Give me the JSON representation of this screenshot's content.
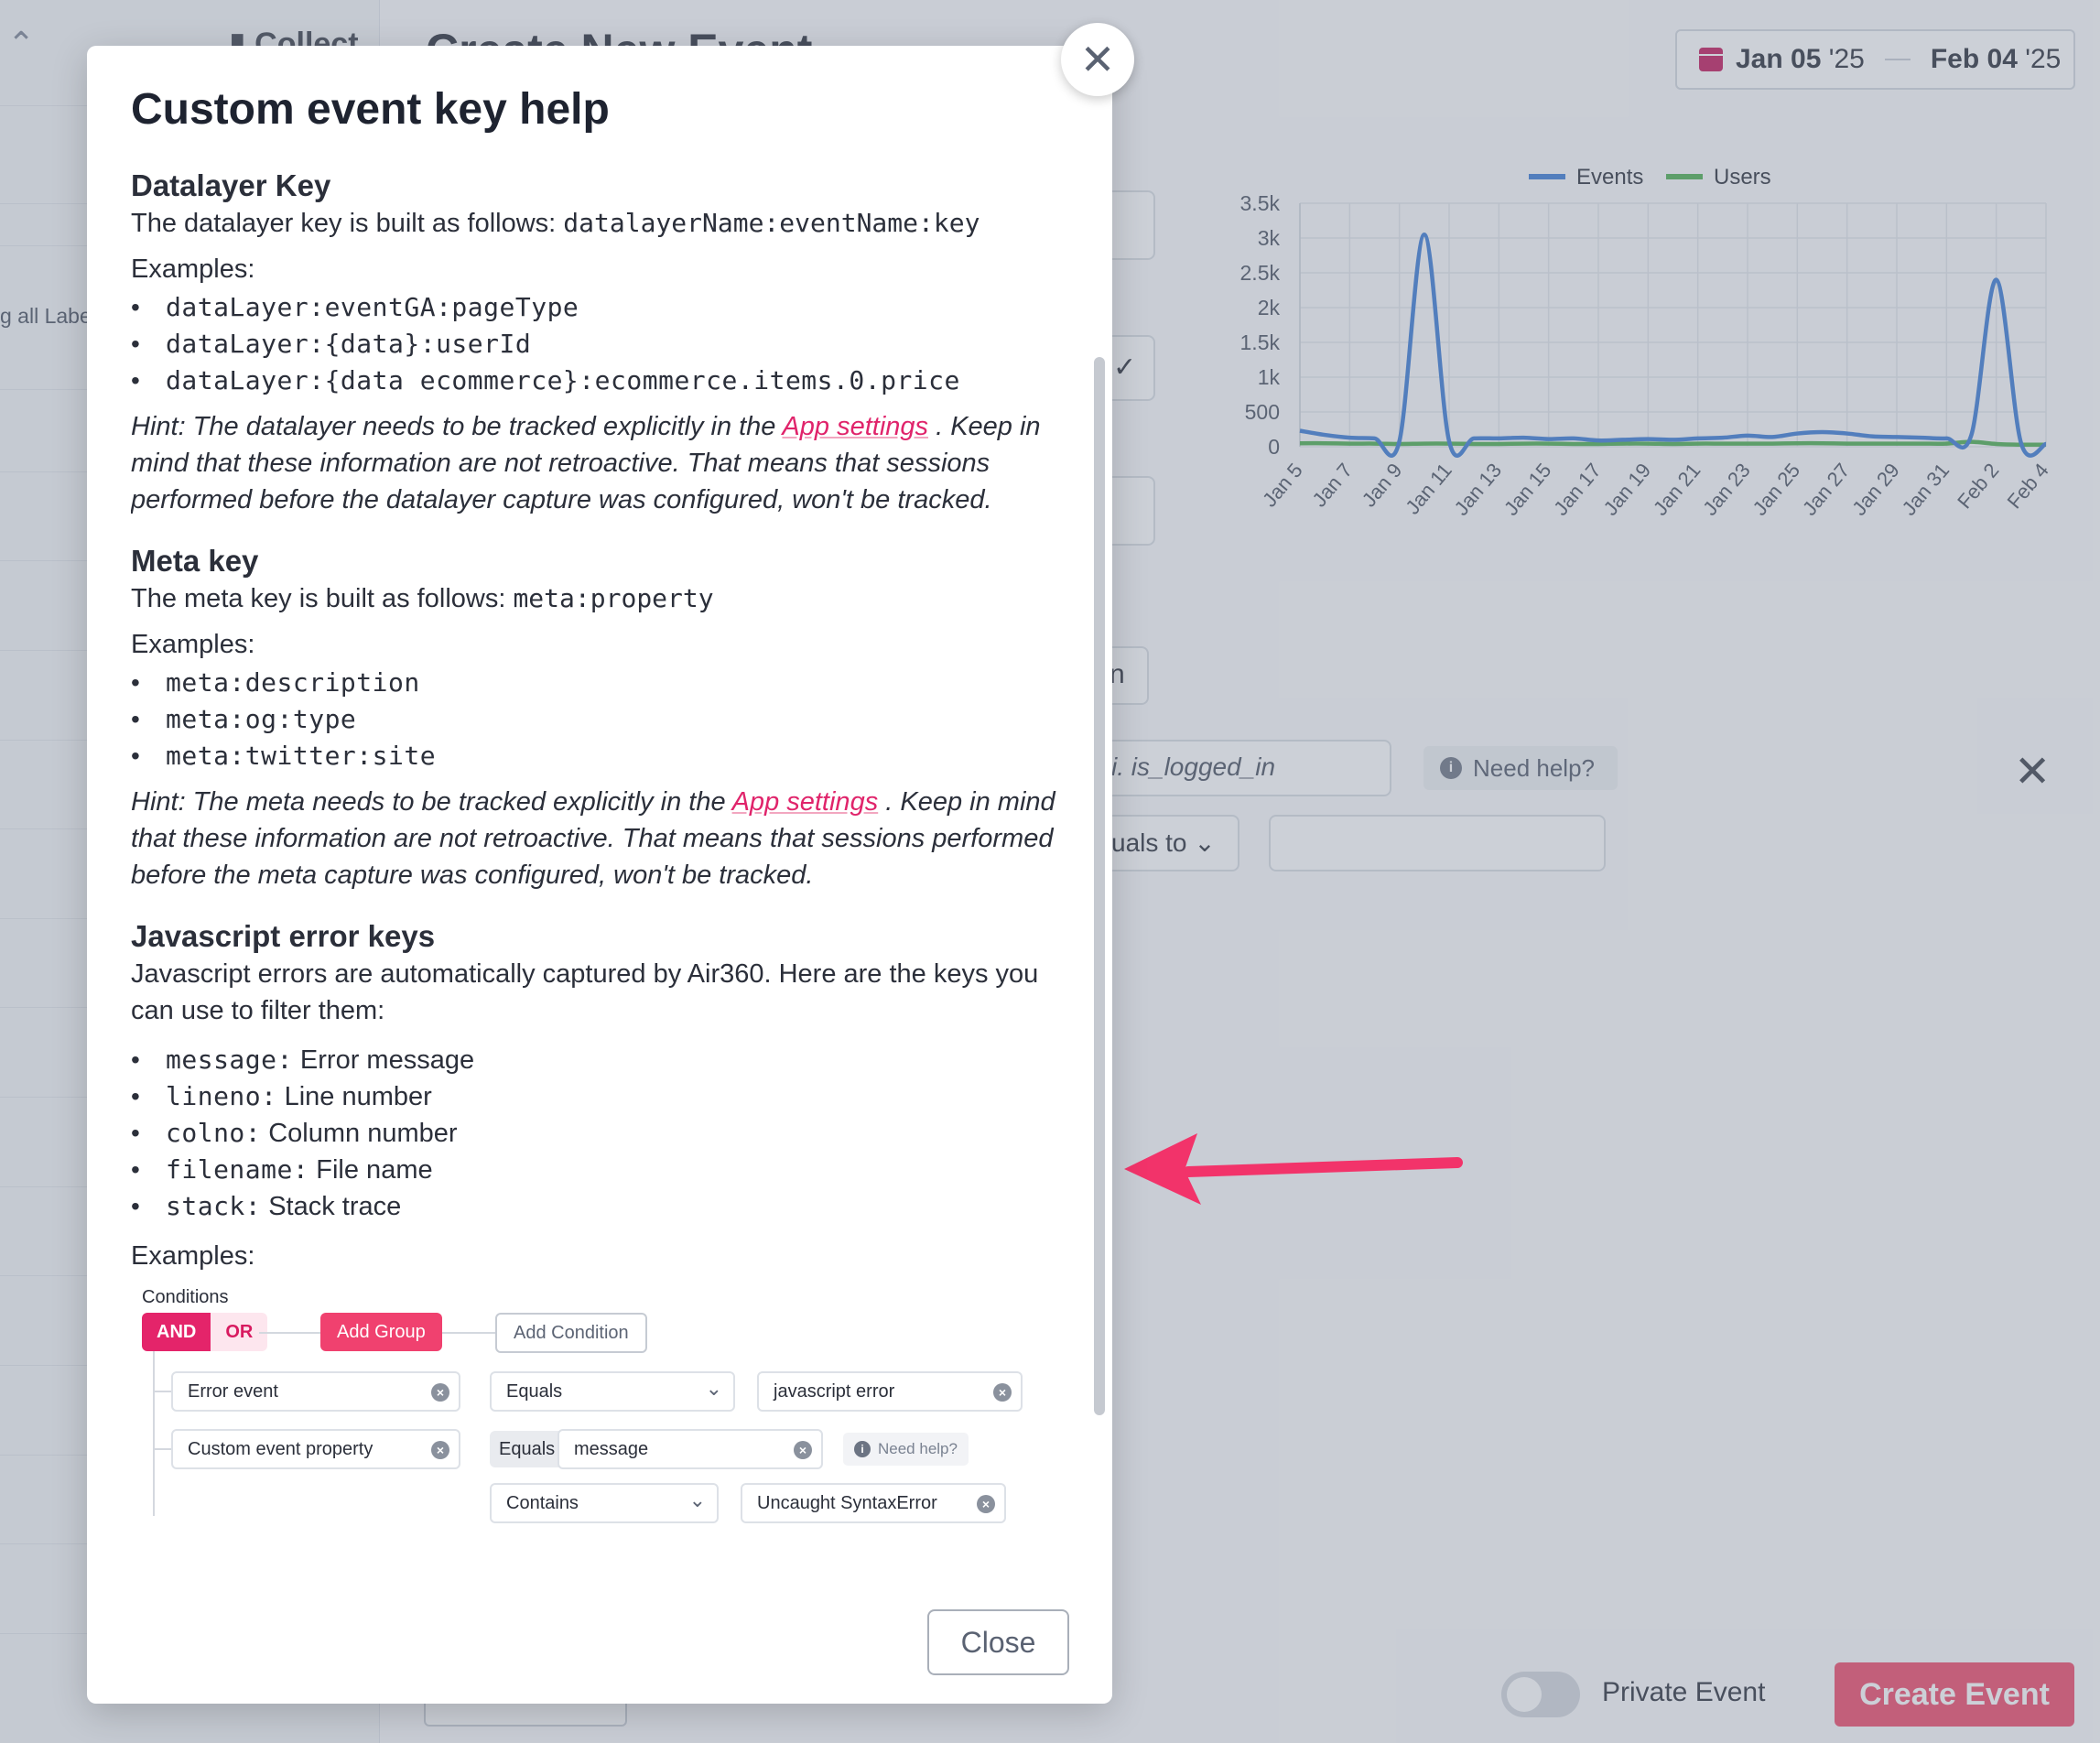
{
  "background": {
    "sidebar_label": "g all Labe",
    "collect_label": "Collect",
    "page_title": "Create New Event",
    "date_range": {
      "start": "Jan 05",
      "start_year": " '25",
      "end": "Feb 04",
      "end_year": " '25"
    },
    "key_input_placeholder": "i. is_logged_in",
    "need_help": "Need help?",
    "equals_label": "uals to",
    "button_partial": "n",
    "private_event_label": "Private Event",
    "create_event_label": "Create Event"
  },
  "chart_data": {
    "type": "line",
    "title": "",
    "xlabel": "",
    "ylabel": "",
    "legend_position": "top",
    "grid": true,
    "ylim": [
      0,
      3500
    ],
    "yticks": [
      "0",
      "500",
      "1k",
      "1.5k",
      "2k",
      "2.5k",
      "3k",
      "3.5k"
    ],
    "x": [
      "Jan 5",
      "Jan 6",
      "Jan 7",
      "Jan 8",
      "Jan 9",
      "Jan 10",
      "Jan 11",
      "Jan 12",
      "Jan 13",
      "Jan 14",
      "Jan 15",
      "Jan 16",
      "Jan 17",
      "Jan 18",
      "Jan 19",
      "Jan 20",
      "Jan 21",
      "Jan 22",
      "Jan 23",
      "Jan 24",
      "Jan 25",
      "Jan 26",
      "Jan 27",
      "Jan 28",
      "Jan 29",
      "Jan 30",
      "Jan 31",
      "Feb 1",
      "Feb 2",
      "Feb 3",
      "Feb 4"
    ],
    "xtick_labels": [
      "Jan 5",
      "Jan 7",
      "Jan 9",
      "Jan 11",
      "Jan 13",
      "Jan 15",
      "Jan 17",
      "Jan 19",
      "Jan 21",
      "Jan 23",
      "Jan 25",
      "Jan 27",
      "Jan 29",
      "Jan 31",
      "Feb 2",
      "Feb 4"
    ],
    "series": [
      {
        "name": "Events",
        "color": "#3a7bd5",
        "values": [
          230,
          170,
          130,
          120,
          80,
          3050,
          80,
          120,
          120,
          130,
          110,
          120,
          90,
          100,
          110,
          100,
          120,
          130,
          160,
          140,
          190,
          210,
          190,
          150,
          140,
          130,
          120,
          170,
          2400,
          50,
          40
        ]
      },
      {
        "name": "Users",
        "color": "#4caf50",
        "values": [
          50,
          50,
          45,
          45,
          40,
          45,
          45,
          40,
          40,
          45,
          45,
          40,
          40,
          45,
          45,
          40,
          45,
          45,
          45,
          45,
          50,
          50,
          45,
          45,
          45,
          45,
          45,
          70,
          40,
          30,
          30
        ]
      }
    ]
  },
  "modal": {
    "title": "Custom event key help",
    "close_label": "Close",
    "datalayer": {
      "heading": "Datalayer Key",
      "intro": "The datalayer key is built as follows: ",
      "format": "datalayerName:eventName:key",
      "examples_label": "Examples:",
      "examples": [
        "dataLayer:eventGA:pageType",
        "dataLayer:{data}:userId",
        "dataLayer:{data ecommerce}:ecommerce.items.0.price"
      ],
      "hint_before": "Hint: The datalayer needs to be tracked explicitly in the ",
      "hint_link": "App settings",
      "hint_after": " . Keep in mind that these information are not retroactive. That means that sessions performed before the datalayer capture was configured, won't be tracked."
    },
    "meta": {
      "heading": "Meta key",
      "intro": "The meta key is built as follows: ",
      "format": "meta:property",
      "examples_label": "Examples:",
      "examples": [
        "meta:description",
        "meta:og:type",
        "meta:twitter:site"
      ],
      "hint_before": "Hint: The meta needs to be tracked explicitly in the ",
      "hint_link": "App settings",
      "hint_after": " . Keep in mind that these information are not retroactive. That means that sessions performed before the meta capture was configured, won't be tracked."
    },
    "jserror": {
      "heading": "Javascript error keys",
      "intro": "Javascript errors are automatically captured by Air360. Here are the keys you can use to filter them:",
      "keys": [
        {
          "key": "message:",
          "desc": " Error message"
        },
        {
          "key": "lineno:",
          "desc": " Line number"
        },
        {
          "key": "colno:",
          "desc": " Column number"
        },
        {
          "key": "filename:",
          "desc": " File name"
        },
        {
          "key": "stack:",
          "desc": " Stack trace"
        }
      ],
      "examples_label": "Examples:"
    },
    "example_shot": {
      "conditions_label": "Conditions",
      "and_label": "AND",
      "or_label": "OR",
      "add_group": "Add Group",
      "add_condition": "Add Condition",
      "row1": {
        "field": "Error event",
        "operator": "Equals",
        "value": "javascript error"
      },
      "row2": {
        "field": "Custom event property",
        "operator": "Equals",
        "value": "message",
        "help": "Need help?"
      },
      "row3": {
        "operator": "Contains",
        "value": "Uncaught SyntaxError"
      }
    }
  }
}
